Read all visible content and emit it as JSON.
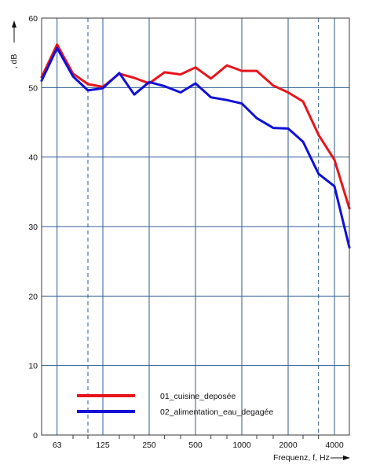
{
  "chart_data": {
    "type": "line",
    "title": "",
    "xlabel": "Frequenz, f, Hz",
    "ylabel": ", dB",
    "x_scale": "log",
    "xlim": [
      50,
      5000
    ],
    "ylim": [
      0,
      60
    ],
    "grid": true,
    "legend_placement": "bottom-center",
    "x_tick_labels": [
      "63",
      "125",
      "250",
      "500",
      "1000",
      "2000",
      "4000"
    ],
    "x_ticks": [
      63,
      125,
      250,
      500,
      1000,
      2000,
      4000
    ],
    "y_tick_labels": [
      "0",
      "10",
      "20",
      "30",
      "40",
      "50",
      "60"
    ],
    "y_ticks": [
      0,
      10,
      20,
      30,
      40,
      50,
      60
    ],
    "dashed_x": [
      100,
      3150
    ],
    "x": [
      50,
      63,
      80,
      100,
      125,
      160,
      200,
      250,
      315,
      400,
      500,
      630,
      800,
      1000,
      1250,
      1600,
      2000,
      2500,
      3150,
      4000,
      5000
    ],
    "series": [
      {
        "name": "01_cuisine_deposée",
        "color": "#e8141c",
        "values": [
          51.5,
          56.2,
          52.0,
          50.5,
          50.1,
          52.0,
          51.4,
          50.6,
          52.2,
          51.9,
          52.9,
          51.3,
          53.2,
          52.4,
          52.4,
          50.3,
          49.3,
          48.0,
          43.2,
          39.6,
          32.6
        ]
      },
      {
        "name": "02_alimentation_eau_degagée",
        "color": "#1010d8",
        "values": [
          51.0,
          55.7,
          51.6,
          49.6,
          49.9,
          52.1,
          49.0,
          50.8,
          50.2,
          49.3,
          50.6,
          48.6,
          48.2,
          47.7,
          45.6,
          44.2,
          44.1,
          42.2,
          37.6,
          35.8,
          27.0
        ]
      }
    ]
  }
}
